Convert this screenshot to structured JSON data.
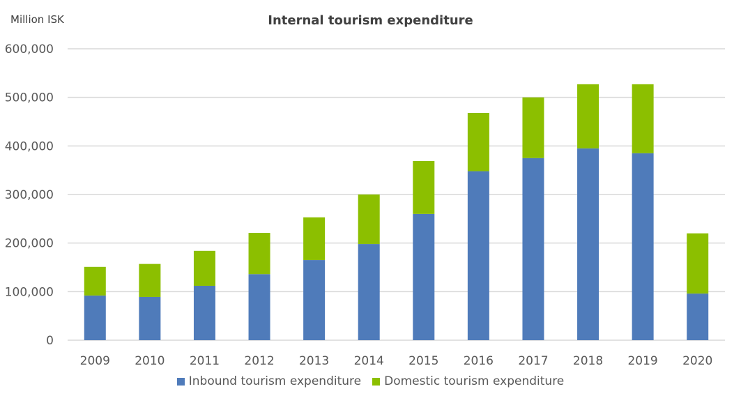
{
  "chart_data": {
    "type": "bar",
    "stacked": true,
    "title": "Internal tourism expenditure",
    "ylabel": "Million ISK",
    "xlabel": "",
    "categories": [
      "2009",
      "2010",
      "2011",
      "2012",
      "2013",
      "2014",
      "2015",
      "2016",
      "2017",
      "2018",
      "2019",
      "2020"
    ],
    "series": [
      {
        "name": "Inbound tourism expenditure",
        "color": "#4F7BBA",
        "values": [
          92000,
          89000,
          112000,
          136000,
          165000,
          198000,
          260000,
          348000,
          375000,
          395000,
          385000,
          96000
        ]
      },
      {
        "name": "Domestic tourism expenditure",
        "color": "#8CBF00",
        "values": [
          59000,
          68000,
          72000,
          85000,
          88000,
          102000,
          109000,
          120000,
          125000,
          132000,
          142000,
          124000
        ]
      }
    ],
    "totals": [
      151000,
      157000,
      184000,
      221000,
      253000,
      300000,
      369000,
      468000,
      500000,
      527000,
      527000,
      220000
    ],
    "ylim": [
      0,
      600000
    ],
    "yticks": [
      0,
      100000,
      200000,
      300000,
      400000,
      500000,
      600000
    ],
    "ytick_labels": [
      "0",
      "100,000",
      "200,000",
      "300,000",
      "400,000",
      "500,000",
      "600,000"
    ],
    "grid": true,
    "legend_position": "bottom"
  },
  "header": {
    "unit_label": "Million ISK",
    "title": "Internal tourism expenditure"
  },
  "legend": {
    "items": [
      {
        "label": "Inbound tourism expenditure",
        "color": "#4F7BBA"
      },
      {
        "label": "Domestic tourism expenditure",
        "color": "#8CBF00"
      }
    ]
  }
}
